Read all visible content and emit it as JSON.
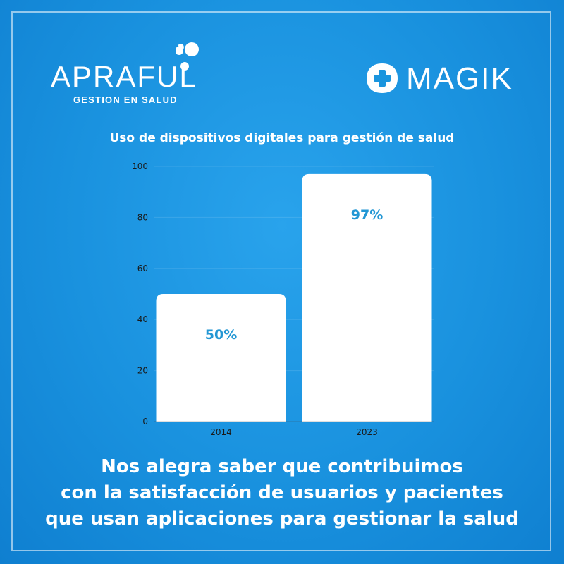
{
  "brand_left": {
    "name": "APRAFUL",
    "tagline": "GESTION EN SALUD"
  },
  "brand_right": {
    "name": "MAGIK"
  },
  "colors": {
    "accent": "#1a95de",
    "bar": "#ffffff",
    "value_label": "#2397d4",
    "axis_text": "#1a1a1a"
  },
  "chart_data": {
    "type": "bar",
    "title": "Uso de dispositivos digitales para gestión de salud",
    "categories": [
      "2014",
      "2023"
    ],
    "values": [
      50,
      97
    ],
    "data_labels": [
      "50%",
      "97%"
    ],
    "ylim": [
      0,
      100
    ],
    "yticks": [
      0,
      20,
      40,
      60,
      80,
      100
    ],
    "xlabel": "",
    "ylabel": "",
    "grid": false
  },
  "footer": {
    "lines": [
      "Nos alegra saber que contribuimos",
      "con la satisfacción de usuarios y pacientes",
      "que usan aplicaciones para gestionar la salud"
    ]
  }
}
